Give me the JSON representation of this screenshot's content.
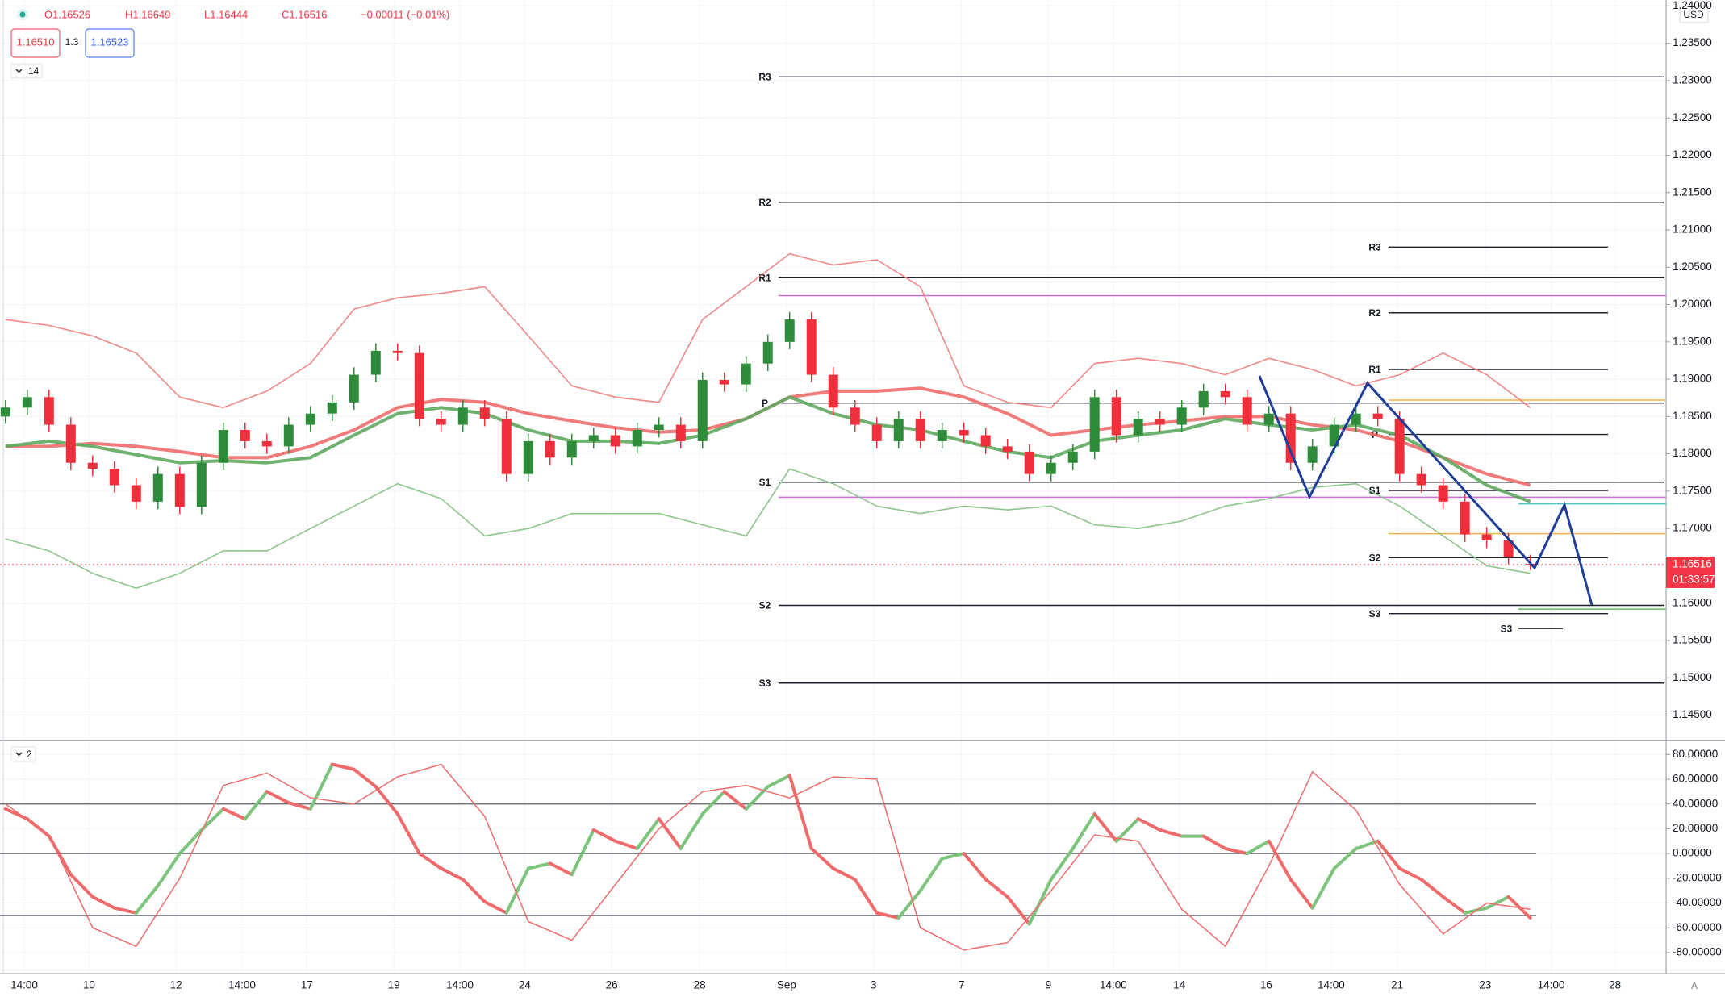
{
  "header": {
    "ohlc": [
      "O1.16526",
      "H1.16649",
      "L1.16444",
      "C1.16516",
      "−0.00011 (−0.01%)"
    ],
    "bid": "1.16510",
    "spread": "1.3",
    "ask": "1.16523",
    "auto": "A"
  },
  "chart_data": [
    {
      "type": "candlestick",
      "up_color": "#2e8b3a",
      "down_color": "#ef2f3c",
      "currency": "USD",
      "period_label": "14",
      "open": [
        1.185,
        1.1862,
        1.1876,
        1.1839,
        1.1788,
        1.178,
        1.1758,
        1.1736,
        1.1773,
        1.1729,
        1.1788,
        1.1832,
        1.1817,
        1.181,
        1.1839,
        1.1854,
        1.1869,
        1.1906,
        1.1938,
        1.1935,
        1.1847,
        1.1839,
        1.1862,
        1.1847,
        1.1773,
        1.1817,
        1.1795,
        1.1817,
        1.1825,
        1.181,
        1.1832,
        1.1839,
        1.1817,
        1.1899,
        1.1893,
        1.1921,
        1.195,
        1.198,
        1.1906,
        1.1862,
        1.1839,
        1.1817,
        1.1847,
        1.1817,
        1.1832,
        1.1825,
        1.181,
        1.1803,
        1.1773,
        1.1788,
        1.1803,
        1.1876,
        1.1825,
        1.1847,
        1.1839,
        1.1862,
        1.1884,
        1.1876,
        1.1839,
        1.1854,
        1.1788,
        1.181,
        1.1839,
        1.1854,
        1.1847,
        1.1773,
        1.1758,
        1.1736,
        1.1692,
        1.1684,
        1.16526
      ],
      "high": [
        1.1872,
        1.1886,
        1.1886,
        1.1849,
        1.1798,
        1.179,
        1.1768,
        1.1783,
        1.1783,
        1.1798,
        1.1842,
        1.1842,
        1.1827,
        1.1849,
        1.1864,
        1.1879,
        1.1916,
        1.1948,
        1.1948,
        1.1945,
        1.1857,
        1.1872,
        1.1872,
        1.1857,
        1.1827,
        1.1827,
        1.1827,
        1.1835,
        1.1835,
        1.1842,
        1.1849,
        1.1849,
        1.1909,
        1.1909,
        1.1931,
        1.196,
        1.199,
        1.199,
        1.1916,
        1.1872,
        1.1849,
        1.1857,
        1.1857,
        1.1842,
        1.1842,
        1.1835,
        1.182,
        1.1813,
        1.1798,
        1.1813,
        1.1886,
        1.1886,
        1.1857,
        1.1857,
        1.1872,
        1.1894,
        1.1894,
        1.1886,
        1.1864,
        1.1864,
        1.182,
        1.1849,
        1.1864,
        1.1864,
        1.1857,
        1.1783,
        1.1768,
        1.1746,
        1.1702,
        1.1694,
        1.16649
      ],
      "low": [
        1.184,
        1.1852,
        1.1829,
        1.1778,
        1.177,
        1.1748,
        1.1726,
        1.1726,
        1.1719,
        1.1719,
        1.1778,
        1.1807,
        1.18,
        1.18,
        1.1829,
        1.1844,
        1.1859,
        1.1896,
        1.1925,
        1.1837,
        1.1829,
        1.1829,
        1.1837,
        1.1763,
        1.1763,
        1.1785,
        1.1785,
        1.1807,
        1.18,
        1.18,
        1.1822,
        1.1807,
        1.1807,
        1.1883,
        1.1883,
        1.1911,
        1.194,
        1.1896,
        1.1852,
        1.1829,
        1.1807,
        1.1807,
        1.1807,
        1.1807,
        1.1815,
        1.18,
        1.1793,
        1.1763,
        1.1763,
        1.1778,
        1.1793,
        1.1815,
        1.1815,
        1.1829,
        1.1829,
        1.1852,
        1.1866,
        1.1829,
        1.1829,
        1.1778,
        1.1778,
        1.18,
        1.1829,
        1.1837,
        1.1763,
        1.1748,
        1.1726,
        1.1682,
        1.1674,
        1.1652,
        1.16444
      ],
      "close": [
        1.1862,
        1.1876,
        1.1839,
        1.1788,
        1.178,
        1.1758,
        1.1736,
        1.1773,
        1.1729,
        1.1788,
        1.1832,
        1.1817,
        1.181,
        1.1839,
        1.1854,
        1.1869,
        1.1906,
        1.1938,
        1.1935,
        1.1847,
        1.1839,
        1.1862,
        1.1847,
        1.1773,
        1.1817,
        1.1795,
        1.1817,
        1.1825,
        1.181,
        1.1832,
        1.1839,
        1.1817,
        1.1899,
        1.1893,
        1.1921,
        1.195,
        1.198,
        1.1906,
        1.1862,
        1.1839,
        1.1817,
        1.1847,
        1.1817,
        1.1832,
        1.1825,
        1.181,
        1.1803,
        1.1773,
        1.1788,
        1.1803,
        1.1876,
        1.1825,
        1.1847,
        1.1839,
        1.1862,
        1.1884,
        1.1876,
        1.1839,
        1.1854,
        1.1788,
        1.181,
        1.1839,
        1.1854,
        1.1847,
        1.1773,
        1.1758,
        1.1736,
        1.1692,
        1.1684,
        1.1662,
        1.16516
      ],
      "ylim": [
        1.1416,
        1.2408
      ],
      "yticks": [
        {
          "value": 1.145,
          "label": "1.14500"
        },
        {
          "value": 1.15,
          "label": "1.15000"
        },
        {
          "value": 1.155,
          "label": "1.15500"
        },
        {
          "value": 1.16,
          "label": "1.16000"
        },
        {
          "value": 1.165,
          "label": "1.16500"
        },
        {
          "value": 1.17,
          "label": "1.17000"
        },
        {
          "value": 1.175,
          "label": "1.17500"
        },
        {
          "value": 1.18,
          "label": "1.18000"
        },
        {
          "value": 1.185,
          "label": "1.18500"
        },
        {
          "value": 1.19,
          "label": "1.19000"
        },
        {
          "value": 1.195,
          "label": "1.19500"
        },
        {
          "value": 1.2,
          "label": "1.20000"
        },
        {
          "value": 1.205,
          "label": "1.20500"
        },
        {
          "value": 1.21,
          "label": "1.21000"
        },
        {
          "value": 1.215,
          "label": "1.21500"
        },
        {
          "value": 1.22,
          "label": "1.22000"
        },
        {
          "value": 1.225,
          "label": "1.22500"
        },
        {
          "value": 1.23,
          "label": "1.23000"
        },
        {
          "value": 1.235,
          "label": "1.23500"
        },
        {
          "value": 1.24,
          "label": "1.24000"
        }
      ],
      "x_labels": [
        "14:00",
        "10",
        "12",
        "14:00",
        "17",
        "19",
        "14:00",
        "24",
        "26",
        "28",
        "Sep",
        "3",
        "7",
        "9",
        "14:00",
        "14",
        "16",
        "14:00",
        "21",
        "23",
        "14:00",
        "28"
      ],
      "overlays": [
        {
          "color": "#f07a7a",
          "width": 1.6,
          "values": [
            1.198,
            1.1972,
            1.1958,
            1.1935,
            1.1876,
            1.1862,
            1.1884,
            1.1921,
            1.1994,
            1.2009,
            1.2015,
            1.2024,
            1.1958,
            1.1891,
            1.1876,
            1.1869,
            1.198,
            1.2024,
            1.2068,
            1.2053,
            1.206,
            1.2024,
            1.1891,
            1.1869,
            1.1862,
            1.1921,
            1.1928,
            1.1921,
            1.1906,
            1.1928,
            1.1913,
            1.1891,
            1.1906,
            1.1935,
            1.1906,
            1.1862
          ]
        },
        {
          "color": "#7fbf7f",
          "width": 1.6,
          "values": [
            1.1686,
            1.167,
            1.164,
            1.162,
            1.164,
            1.167,
            1.167,
            1.17,
            1.173,
            1.176,
            1.174,
            1.169,
            1.17,
            1.172,
            1.172,
            1.172,
            1.1705,
            1.169,
            1.178,
            1.176,
            1.173,
            1.172,
            1.173,
            1.1725,
            1.173,
            1.1705,
            1.17,
            1.171,
            1.173,
            1.174,
            1.1755,
            1.176,
            1.173,
            1.169,
            1.165,
            1.164
          ]
        },
        {
          "color": "#ef6b6b",
          "width": 4,
          "values": [
            1.181,
            1.181,
            1.1814,
            1.181,
            1.1803,
            1.1795,
            1.1795,
            1.181,
            1.1832,
            1.1862,
            1.1873,
            1.1869,
            1.1854,
            1.1844,
            1.1835,
            1.1829,
            1.1832,
            1.1847,
            1.1876,
            1.1884,
            1.1884,
            1.1888,
            1.1876,
            1.1854,
            1.1825,
            1.1832,
            1.1839,
            1.1844,
            1.185,
            1.185,
            1.1839,
            1.1832,
            1.1817,
            1.1795,
            1.1773,
            1.1758
          ]
        },
        {
          "color": "#5fa85f",
          "width": 4,
          "values": [
            1.181,
            1.1817,
            1.181,
            1.1799,
            1.1788,
            1.1791,
            1.1788,
            1.1795,
            1.1825,
            1.1854,
            1.1862,
            1.1854,
            1.1832,
            1.1817,
            1.1817,
            1.1814,
            1.1825,
            1.1847,
            1.1876,
            1.1854,
            1.1839,
            1.1832,
            1.1817,
            1.1803,
            1.1795,
            1.1817,
            1.1825,
            1.1832,
            1.1847,
            1.1839,
            1.1832,
            1.1839,
            1.1825,
            1.1795,
            1.1758,
            1.1736
          ]
        }
      ],
      "pivot_sets": [
        {
          "levels": [
            {
              "label": "R3",
              "value": 1.2305
            },
            {
              "label": "R2",
              "value": 1.2137
            },
            {
              "label": "R1",
              "value": 1.2036
            },
            {
              "label": "P",
              "value": 1.1868
            },
            {
              "label": "S1",
              "value": 1.1762
            },
            {
              "label": "S2",
              "value": 1.1597
            },
            {
              "label": "S3",
              "value": 1.1493
            }
          ]
        },
        {
          "levels": [
            {
              "label": "R3",
              "value": 1.2077
            },
            {
              "label": "R2",
              "value": 1.1989
            },
            {
              "label": "R1",
              "value": 1.1913
            },
            {
              "label": "P",
              "value": 1.1826
            },
            {
              "label": "S1",
              "value": 1.1751
            },
            {
              "label": "S2",
              "value": 1.1661
            },
            {
              "label": "S3",
              "value": 1.1586
            }
          ]
        },
        {
          "levels": [
            {
              "label": "S3",
              "value": 1.1566
            }
          ]
        }
      ],
      "levels": [
        {
          "value": 1.2012,
          "color": "#d36be0"
        },
        {
          "value": 1.1742,
          "color": "#d36be0"
        },
        {
          "value": 1.1872,
          "color": "#f5b04c"
        },
        {
          "value": 1.1693,
          "color": "#f5b04c"
        },
        {
          "value": 1.1733,
          "color": "#4fc3c0"
        },
        {
          "value": 1.1592,
          "color": "#66bb6a"
        }
      ],
      "last_price": {
        "value": 1.16516,
        "countdown": "01:33:57",
        "color": "#f23645"
      }
    },
    {
      "type": "line",
      "period_label": "2",
      "up_color": "#7cc47c",
      "down_color": "#ef6b6b",
      "series": [
        {
          "color": "#7cc47c",
          "width": 4,
          "values": [
            36,
            28,
            14,
            -17,
            -35,
            -44,
            -48,
            -26,
            0,
            19,
            36,
            28,
            50,
            41,
            36,
            72,
            68,
            54,
            32,
            0,
            -12,
            -21,
            -39,
            -48,
            -12,
            -8,
            -17,
            19,
            10,
            4,
            28,
            4,
            32,
            50,
            36,
            54,
            63,
            4,
            -12,
            -21,
            -48,
            -52,
            -30,
            -4,
            0,
            -21,
            -35,
            -57,
            -21,
            4,
            32,
            10,
            28,
            19,
            14,
            14,
            4,
            0,
            10,
            -21,
            -44,
            -12,
            4,
            10,
            -12,
            -21,
            -35,
            -48,
            -44,
            -35,
            -52
          ]
        },
        {
          "color": "#ef6b6b",
          "width": 1.5,
          "values": [
            40,
            15,
            -60,
            -75,
            -20,
            55,
            65,
            45,
            40,
            62,
            72,
            30,
            -55,
            -70,
            -25,
            20,
            50,
            55,
            45,
            62,
            60,
            -60,
            -78,
            -72,
            -30,
            15,
            10,
            -45,
            -75,
            -10,
            66,
            35,
            -25,
            -65,
            -40,
            -45
          ]
        }
      ],
      "ylim": [
        -97,
        90
      ],
      "yticks": [
        {
          "value": -80,
          "label": "-80.00000"
        },
        {
          "value": -60,
          "label": "-60.00000"
        },
        {
          "value": -40,
          "label": "-40.00000"
        },
        {
          "value": -20,
          "label": "-20.00000"
        },
        {
          "value": 0,
          "label": "0.00000"
        },
        {
          "value": 20,
          "label": "20.00000"
        },
        {
          "value": 40,
          "label": "40.00000"
        },
        {
          "value": 60,
          "label": "60.00000"
        },
        {
          "value": 80,
          "label": "80.00000"
        }
      ],
      "levels": [
        40,
        0,
        -50
      ]
    }
  ]
}
